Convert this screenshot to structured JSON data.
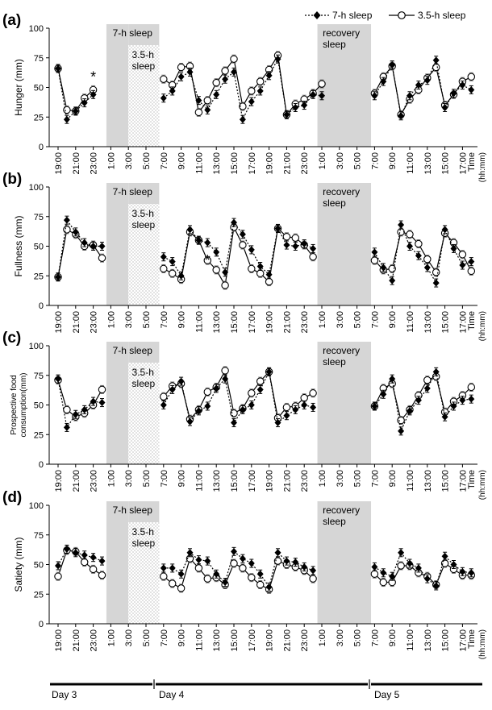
{
  "legend": {
    "series_a": "7-h sleep",
    "series_b": "3.5-h sleep"
  },
  "colors": {
    "shade": "#d6d6d6",
    "stipple_dot": "#9a9a9a",
    "line": "#000000"
  },
  "days": [
    "Day 3",
    "Day 4",
    "Day 5"
  ],
  "x_axis": {
    "ticks": [
      "19:00",
      "21:00",
      "23:00",
      "1:00",
      "3:00",
      "5:00",
      "7:00",
      "9:00",
      "11:00",
      "13:00",
      "15:00",
      "17:00",
      "19:00",
      "21:00",
      "23:00",
      "1:00",
      "3:00",
      "5:00",
      "7:00",
      "9:00",
      "11:00",
      "13:00",
      "15:00",
      "17:00"
    ],
    "title_line1": "Time",
    "title_line2": "(hh:mm)"
  },
  "blocks": {
    "sleep7": "7-h sleep",
    "sleep35_line1": "3.5-h",
    "sleep35_line2": "sleep",
    "recovery_line1": "recovery",
    "recovery_line2": "sleep"
  },
  "chart_data": [
    {
      "type": "line",
      "panel": "(a)",
      "ylabel": "Hunger (mm)",
      "ylim": [
        0,
        100
      ],
      "yticks": [
        "0",
        "25",
        "50",
        "75",
        "100"
      ],
      "x_unit": "hours from 19:00 Day 3",
      "annotations": [
        {
          "text": "*",
          "x": 4
        }
      ],
      "series": [
        {
          "name": "7-h sleep",
          "style": "dotted, filled diamond",
          "x": [
            0,
            1,
            2,
            3,
            4,
            12,
            13,
            14,
            15,
            16,
            17,
            18,
            19,
            20,
            21,
            22,
            23,
            24,
            25,
            26,
            27,
            28,
            29,
            30,
            36,
            37,
            38,
            39,
            40,
            41,
            42,
            43,
            44,
            45,
            46,
            47
          ],
          "y": [
            66,
            23,
            30,
            37,
            44,
            41,
            47,
            59,
            63,
            39,
            31,
            44,
            57,
            63,
            23,
            38,
            47,
            60,
            74,
            27,
            33,
            35,
            44,
            43,
            43,
            55,
            69,
            26,
            43,
            52,
            56,
            73,
            33,
            45,
            52,
            48
          ]
        },
        {
          "name": "3.5-h sleep",
          "style": "solid, open circle",
          "x": [
            0,
            1,
            2,
            3,
            4,
            12,
            13,
            14,
            15,
            16,
            17,
            18,
            19,
            20,
            21,
            22,
            23,
            24,
            25,
            26,
            27,
            28,
            29,
            30,
            36,
            37,
            38,
            39,
            40,
            41,
            42,
            43,
            44,
            45,
            46,
            47
          ],
          "y": [
            66,
            31,
            30,
            41,
            48,
            57,
            52,
            67,
            68,
            29,
            39,
            54,
            64,
            74,
            34,
            47,
            55,
            65,
            77,
            27,
            36,
            40,
            45,
            53,
            45,
            59,
            68,
            27,
            40,
            48,
            58,
            67,
            35,
            44,
            55,
            59
          ]
        }
      ]
    },
    {
      "type": "line",
      "panel": "(b)",
      "ylabel": "Fullness (mm)",
      "ylim": [
        0,
        100
      ],
      "yticks": [
        "0",
        "25",
        "50",
        "75",
        "100"
      ],
      "x_unit": "hours from 19:00 Day 3",
      "annotations": [
        {
          "text": "*",
          "x": 18
        }
      ],
      "series": [
        {
          "name": "7-h sleep",
          "style": "dotted, filled diamond",
          "x": [
            0,
            1,
            2,
            3,
            4,
            5,
            12,
            13,
            14,
            15,
            16,
            17,
            18,
            19,
            20,
            21,
            22,
            23,
            24,
            25,
            26,
            27,
            28,
            29,
            36,
            37,
            38,
            39,
            40,
            41,
            42,
            43,
            44,
            45,
            46,
            47
          ],
          "y": [
            24,
            72,
            62,
            53,
            50,
            50,
            41,
            37,
            25,
            64,
            55,
            53,
            45,
            28,
            70,
            60,
            47,
            33,
            26,
            65,
            51,
            50,
            52,
            48,
            45,
            32,
            21,
            68,
            50,
            42,
            32,
            19,
            64,
            48,
            34,
            37
          ]
        },
        {
          "name": "3.5-h sleep",
          "style": "solid, open circle",
          "x": [
            0,
            1,
            2,
            3,
            4,
            5,
            12,
            13,
            14,
            15,
            16,
            17,
            18,
            19,
            20,
            21,
            22,
            23,
            24,
            25,
            26,
            27,
            28,
            29,
            36,
            37,
            38,
            39,
            40,
            41,
            42,
            43,
            44,
            45,
            46,
            47
          ],
          "y": [
            24,
            64,
            60,
            50,
            51,
            40,
            31,
            27,
            22,
            62,
            55,
            38,
            30,
            17,
            66,
            51,
            31,
            27,
            20,
            65,
            58,
            57,
            51,
            41,
            38,
            30,
            31,
            62,
            60,
            52,
            39,
            28,
            61,
            53,
            43,
            29
          ]
        }
      ]
    },
    {
      "type": "line",
      "panel": "(c)",
      "ylabel": "Prospective food consumption(mm)",
      "ylabel_line1": "Prospective food",
      "ylabel_line2": "consumption(mm)",
      "ylim": [
        0,
        100
      ],
      "yticks": [
        "0",
        "25",
        "50",
        "75",
        "100"
      ],
      "x_unit": "hours from 19:00 Day 3",
      "annotations": [],
      "series": [
        {
          "name": "7-h sleep",
          "style": "dotted, filled diamond",
          "x": [
            0,
            1,
            2,
            3,
            4,
            5,
            12,
            13,
            14,
            15,
            16,
            17,
            18,
            19,
            20,
            21,
            22,
            23,
            24,
            25,
            26,
            27,
            28,
            29,
            36,
            37,
            38,
            39,
            40,
            41,
            42,
            43,
            44,
            45,
            46,
            47
          ],
          "y": [
            72,
            31,
            42,
            46,
            53,
            52,
            50,
            63,
            70,
            36,
            45,
            49,
            64,
            72,
            35,
            46,
            50,
            63,
            78,
            35,
            41,
            46,
            50,
            48,
            49,
            59,
            72,
            28,
            45,
            54,
            64,
            78,
            40,
            49,
            54,
            55
          ]
        },
        {
          "name": "3.5-h sleep",
          "style": "solid, open circle",
          "x": [
            0,
            1,
            2,
            3,
            4,
            5,
            12,
            13,
            14,
            15,
            16,
            17,
            18,
            19,
            20,
            21,
            22,
            23,
            24,
            25,
            26,
            27,
            28,
            29,
            36,
            37,
            38,
            39,
            40,
            41,
            42,
            43,
            44,
            45,
            46,
            47
          ],
          "y": [
            71,
            46,
            40,
            43,
            50,
            63,
            57,
            66,
            68,
            38,
            46,
            61,
            65,
            79,
            43,
            47,
            60,
            70,
            78,
            39,
            48,
            49,
            56,
            60,
            49,
            64,
            68,
            37,
            46,
            58,
            71,
            74,
            44,
            53,
            58,
            65
          ]
        }
      ]
    },
    {
      "type": "line",
      "panel": "(d)",
      "ylabel": "Satiety (mm)",
      "ylim": [
        0,
        100
      ],
      "yticks": [
        "0",
        "25",
        "50",
        "75",
        "100"
      ],
      "x_unit": "hours from 19:00 Day 3",
      "annotations": [],
      "series": [
        {
          "name": "7-h sleep",
          "style": "dotted, filled diamond",
          "x": [
            0,
            1,
            2,
            3,
            4,
            5,
            12,
            13,
            14,
            15,
            16,
            17,
            18,
            19,
            20,
            21,
            22,
            23,
            24,
            25,
            26,
            27,
            28,
            29,
            36,
            37,
            38,
            39,
            40,
            41,
            42,
            43,
            44,
            45,
            46,
            47
          ],
          "y": [
            49,
            63,
            60,
            58,
            56,
            53,
            47,
            47,
            42,
            60,
            54,
            53,
            42,
            35,
            61,
            55,
            51,
            42,
            31,
            60,
            53,
            52,
            48,
            45,
            48,
            43,
            40,
            60,
            51,
            47,
            38,
            32,
            57,
            50,
            44,
            43
          ]
        },
        {
          "name": "3.5-h sleep",
          "style": "solid, open circle",
          "x": [
            0,
            1,
            2,
            3,
            4,
            5,
            12,
            13,
            14,
            15,
            16,
            17,
            18,
            19,
            20,
            21,
            22,
            23,
            24,
            25,
            26,
            27,
            28,
            29,
            36,
            37,
            38,
            39,
            40,
            41,
            42,
            43,
            44,
            45,
            46,
            47
          ],
          "y": [
            40,
            62,
            61,
            52,
            46,
            41,
            40,
            34,
            30,
            55,
            47,
            38,
            39,
            33,
            51,
            47,
            39,
            33,
            29,
            53,
            50,
            48,
            45,
            38,
            42,
            35,
            35,
            49,
            49,
            43,
            40,
            33,
            51,
            46,
            41,
            41
          ]
        }
      ]
    }
  ]
}
